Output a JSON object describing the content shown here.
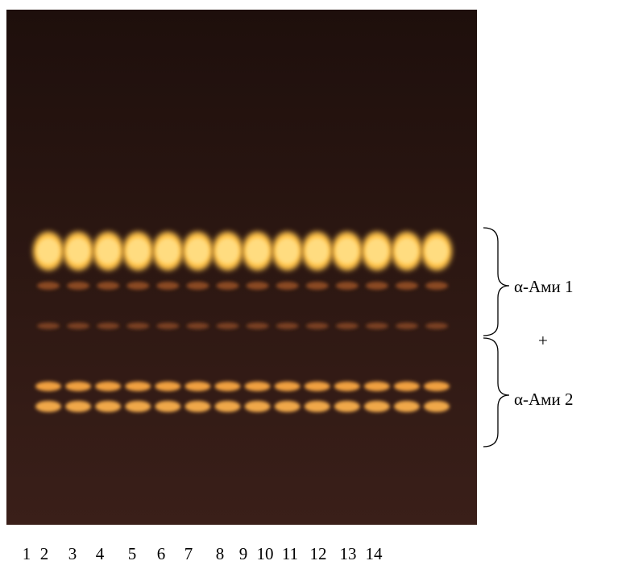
{
  "lanes": [
    "1",
    "2",
    "3",
    "4",
    "5",
    "6",
    "7",
    "8",
    "9",
    "10",
    "11",
    "12",
    "13",
    "14"
  ],
  "brackets": [
    {
      "label": "α-Ами 1"
    },
    {
      "label": "α-Ами 2"
    }
  ],
  "separator": "+"
}
